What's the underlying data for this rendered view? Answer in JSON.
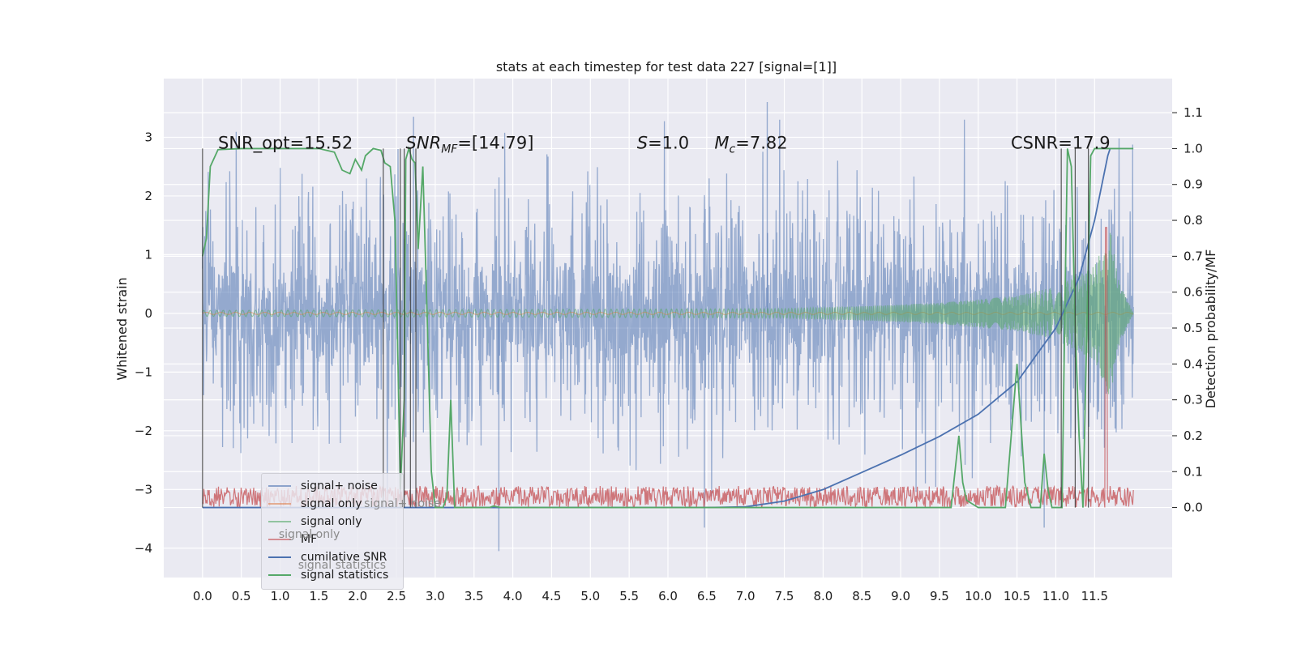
{
  "chart_data": {
    "type": "line",
    "title": "stats at each timestep for test data 227 [signal=[1]]",
    "ylabel": "Whitened strain",
    "ylabel_right": "Detection probability/MF",
    "xlim": [
      -0.5,
      12.5
    ],
    "ylim": [
      -4.5,
      4.0
    ],
    "ylim_right": [
      -0.195,
      1.195
    ],
    "x_ticks": [
      "0.0",
      "0.5",
      "1.0",
      "1.5",
      "2.0",
      "2.5",
      "3.0",
      "3.5",
      "4.0",
      "4.5",
      "5.0",
      "5.5",
      "6.0",
      "6.5",
      "7.0",
      "7.5",
      "8.0",
      "8.5",
      "9.0",
      "9.5",
      "10.0",
      "10.5",
      "11.0",
      "11.5"
    ],
    "y_ticks": [
      "3",
      "2",
      "1",
      "0",
      "−1",
      "−2",
      "−3",
      "−4"
    ],
    "y_ticks_right": [
      "1.1",
      "1.0",
      "0.9",
      "0.8",
      "0.7",
      "0.6",
      "0.5",
      "0.4",
      "0.3",
      "0.2",
      "0.1",
      "0.0"
    ],
    "annotations": [
      {
        "label": "SNR_opt=15.52",
        "x": 0.2,
        "y": 1.0
      },
      {
        "label": "SNR",
        "sub": "MF",
        "label2": "=[14.79]",
        "x": 2.62,
        "y": 1.0
      },
      {
        "label": "S",
        "label2": "=1.0",
        "x": 5.6,
        "y": 1.0
      },
      {
        "label": "M",
        "sub": "c",
        "label2": "=7.82",
        "x": 6.6,
        "y": 1.0
      },
      {
        "label": "CSNR=17.9",
        "x": 10.42,
        "y": 1.0
      }
    ],
    "vertical_lines_x": [
      0.0,
      2.33,
      2.55,
      2.6,
      2.68,
      2.75,
      11.07,
      11.25,
      11.42
    ],
    "series": [
      {
        "name": "signal+ noise",
        "color": "#4c72b0",
        "axis": "left",
        "kind": "noise",
        "x_range": [
          0.0,
          12.0
        ],
        "amplitude": 1.5,
        "extremes": [
          {
            "x": 3.82,
            "y": -4.05
          },
          {
            "x": 7.28,
            "y": 3.6
          },
          {
            "x": 2.72,
            "y": 3.35
          },
          {
            "x": 6.47,
            "y": -3.65
          },
          {
            "x": 10.85,
            "y": -3.65
          }
        ]
      },
      {
        "name": "signal only",
        "color": "#dd8452",
        "axis": "left",
        "kind": "chirp",
        "x_range": [
          0.0,
          12.0
        ]
      },
      {
        "name": "signal only",
        "color": "#55a868",
        "axis": "left",
        "kind": "chirp",
        "x_range": [
          0.0,
          12.0
        ],
        "envelope": [
          [
            0.0,
            0.05
          ],
          [
            7.5,
            0.08
          ],
          [
            8.5,
            0.12
          ],
          [
            9.5,
            0.18
          ],
          [
            10.5,
            0.3
          ],
          [
            11.0,
            0.45
          ],
          [
            11.5,
            0.8
          ],
          [
            11.7,
            1.45
          ],
          [
            11.8,
            0.6
          ],
          [
            12.0,
            0.0
          ]
        ]
      },
      {
        "name": "MF",
        "color": "#c44e52",
        "axis": "right",
        "kind": "band",
        "x_range": [
          0.0,
          12.0
        ],
        "level": [
          0.0,
          0.06
        ],
        "spike": {
          "x": 11.65,
          "y": 0.78
        }
      },
      {
        "name": "cumilative SNR",
        "color": "#4c72b0",
        "axis": "right",
        "kind": "line",
        "points": [
          [
            0.0,
            0.0
          ],
          [
            6.5,
            0.0
          ],
          [
            7.0,
            0.002
          ],
          [
            7.5,
            0.018
          ],
          [
            8.0,
            0.05
          ],
          [
            8.5,
            0.098
          ],
          [
            9.0,
            0.146
          ],
          [
            9.5,
            0.198
          ],
          [
            10.0,
            0.26
          ],
          [
            10.5,
            0.35
          ],
          [
            11.0,
            0.5
          ],
          [
            11.3,
            0.64
          ],
          [
            11.5,
            0.8
          ],
          [
            11.67,
            0.98
          ],
          [
            11.7,
            1.0
          ]
        ]
      },
      {
        "name": "signal statistics",
        "color": "#55a868",
        "axis": "right",
        "kind": "line",
        "points": [
          [
            0.0,
            0.7
          ],
          [
            0.05,
            0.75
          ],
          [
            0.1,
            0.95
          ],
          [
            0.2,
            0.997
          ],
          [
            0.5,
            1.0
          ],
          [
            1.0,
            1.0
          ],
          [
            1.5,
            1.0
          ],
          [
            1.7,
            0.99
          ],
          [
            1.8,
            0.94
          ],
          [
            1.9,
            0.93
          ],
          [
            1.97,
            0.97
          ],
          [
            2.05,
            0.94
          ],
          [
            2.1,
            0.98
          ],
          [
            2.2,
            1.0
          ],
          [
            2.3,
            0.995
          ],
          [
            2.35,
            0.96
          ],
          [
            2.42,
            0.95
          ],
          [
            2.48,
            0.8
          ],
          [
            2.52,
            0.4
          ],
          [
            2.55,
            0.05
          ],
          [
            2.6,
            0.3
          ],
          [
            2.62,
            0.97
          ],
          [
            2.66,
            1.0
          ],
          [
            2.7,
            0.97
          ],
          [
            2.74,
            0.96
          ],
          [
            2.78,
            0.72
          ],
          [
            2.84,
            0.95
          ],
          [
            2.9,
            0.5
          ],
          [
            2.95,
            0.1
          ],
          [
            3.0,
            0.0
          ],
          [
            3.1,
            0.0
          ],
          [
            3.15,
            0.03
          ],
          [
            3.2,
            0.3
          ],
          [
            3.25,
            0.0
          ],
          [
            3.35,
            0.0
          ],
          [
            3.7,
            0.0
          ],
          [
            3.75,
            0.004
          ],
          [
            3.85,
            0.0
          ],
          [
            9.5,
            0.0
          ],
          [
            9.65,
            0.0
          ],
          [
            9.75,
            0.2
          ],
          [
            9.8,
            0.07
          ],
          [
            9.85,
            0.02
          ],
          [
            10.0,
            0.0
          ],
          [
            10.25,
            0.0
          ],
          [
            10.35,
            0.0
          ],
          [
            10.5,
            0.4
          ],
          [
            10.6,
            0.07
          ],
          [
            10.68,
            0.0
          ],
          [
            10.8,
            0.0
          ],
          [
            10.85,
            0.15
          ],
          [
            10.9,
            0.05
          ],
          [
            10.95,
            0.0
          ],
          [
            11.08,
            0.0
          ],
          [
            11.12,
            0.6
          ],
          [
            11.15,
            1.0
          ],
          [
            11.2,
            0.95
          ],
          [
            11.25,
            0.5
          ],
          [
            11.3,
            0.2
          ],
          [
            11.35,
            0.0
          ],
          [
            11.4,
            0.5
          ],
          [
            11.45,
            0.98
          ],
          [
            11.5,
            1.0
          ],
          [
            12.0,
            1.0
          ]
        ]
      }
    ],
    "legend_position": "lower-left"
  },
  "overlapping_text": [
    {
      "text": "signal+ noise",
      "x": 2.5,
      "y": -3.26
    },
    {
      "text": "signal only",
      "x": 1.4,
      "y": -3.78
    },
    {
      "text": "signal statistics",
      "x": 1.65,
      "y": -4.3
    }
  ]
}
